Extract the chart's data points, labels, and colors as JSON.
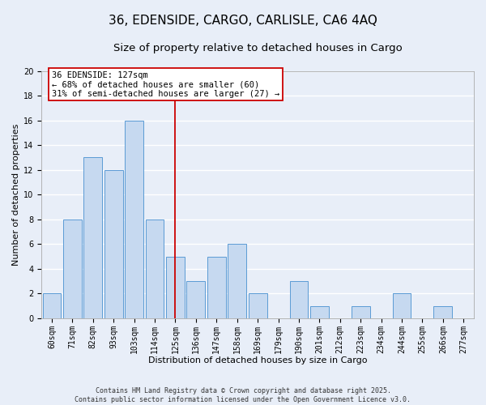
{
  "title": "36, EDENSIDE, CARGO, CARLISLE, CA6 4AQ",
  "subtitle": "Size of property relative to detached houses in Cargo",
  "xlabel": "Distribution of detached houses by size in Cargo",
  "ylabel": "Number of detached properties",
  "bins": [
    "60sqm",
    "71sqm",
    "82sqm",
    "93sqm",
    "103sqm",
    "114sqm",
    "125sqm",
    "136sqm",
    "147sqm",
    "158sqm",
    "169sqm",
    "179sqm",
    "190sqm",
    "201sqm",
    "212sqm",
    "223sqm",
    "234sqm",
    "244sqm",
    "255sqm",
    "266sqm",
    "277sqm"
  ],
  "bar_values": [
    2,
    8,
    13,
    12,
    16,
    8,
    5,
    3,
    5,
    6,
    2,
    0,
    3,
    1,
    0,
    1,
    0,
    2,
    0,
    1,
    0
  ],
  "bar_color": "#c6d9f0",
  "bar_edgecolor": "#5b9bd5",
  "background_color": "#e8eef8",
  "grid_color": "#ffffff",
  "vline_x_index": 6,
  "vline_color": "#cc0000",
  "ylim": [
    0,
    20
  ],
  "yticks": [
    0,
    2,
    4,
    6,
    8,
    10,
    12,
    14,
    16,
    18,
    20
  ],
  "annotation_line1": "36 EDENSIDE: 127sqm",
  "annotation_line2": "← 68% of detached houses are smaller (60)",
  "annotation_line3": "31% of semi-detached houses are larger (27) →",
  "annotation_box_color": "#ffffff",
  "annotation_border_color": "#cc0000",
  "footer_line1": "Contains HM Land Registry data © Crown copyright and database right 2025.",
  "footer_line2": "Contains public sector information licensed under the Open Government Licence v3.0.",
  "title_fontsize": 11,
  "subtitle_fontsize": 9.5,
  "axis_label_fontsize": 8,
  "tick_fontsize": 7,
  "annotation_fontsize": 7.5,
  "footer_fontsize": 6
}
